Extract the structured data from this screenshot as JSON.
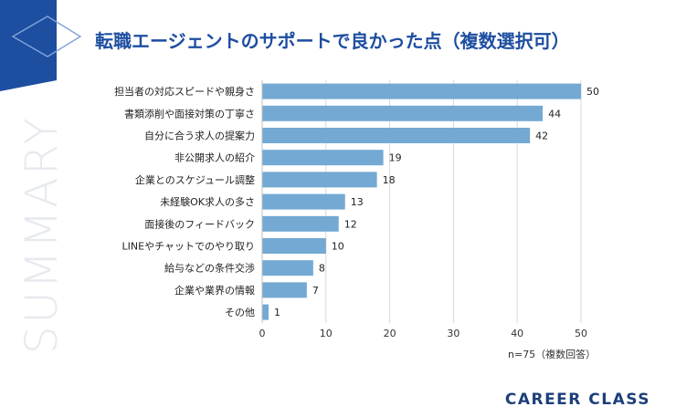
{
  "page": {
    "title": "転職エージェントのサポートで良かった点（複数選択可）",
    "side_label": "SUMMARY",
    "brand": "CAREER CLASS",
    "note": "n=75（複数回答）"
  },
  "colors": {
    "bar": "#73a9d3",
    "title": "#1e4ea0",
    "deco": "#1e4ea0",
    "grid": "#d9d9d9"
  },
  "chart_data": {
    "type": "bar",
    "orientation": "horizontal",
    "title": "転職エージェントのサポートで良かった点（複数選択可）",
    "xlabel": "",
    "ylabel": "",
    "xlim": [
      0,
      50
    ],
    "xticks": [
      0,
      10,
      20,
      30,
      40,
      50
    ],
    "grid": true,
    "categories": [
      "担当者の対応スピードや親身さ",
      "書類添削や面接対策の丁寧さ",
      "自分に合う求人の提案力",
      "非公開求人の紹介",
      "企業とのスケジュール調整",
      "未経験OK求人の多さ",
      "面接後のフィードバック",
      "LINEやチャットでのやり取り",
      "給与などの条件交渉",
      "企業や業界の情報",
      "その他"
    ],
    "values": [
      50,
      44,
      42,
      19,
      18,
      13,
      12,
      10,
      8,
      7,
      1
    ]
  }
}
